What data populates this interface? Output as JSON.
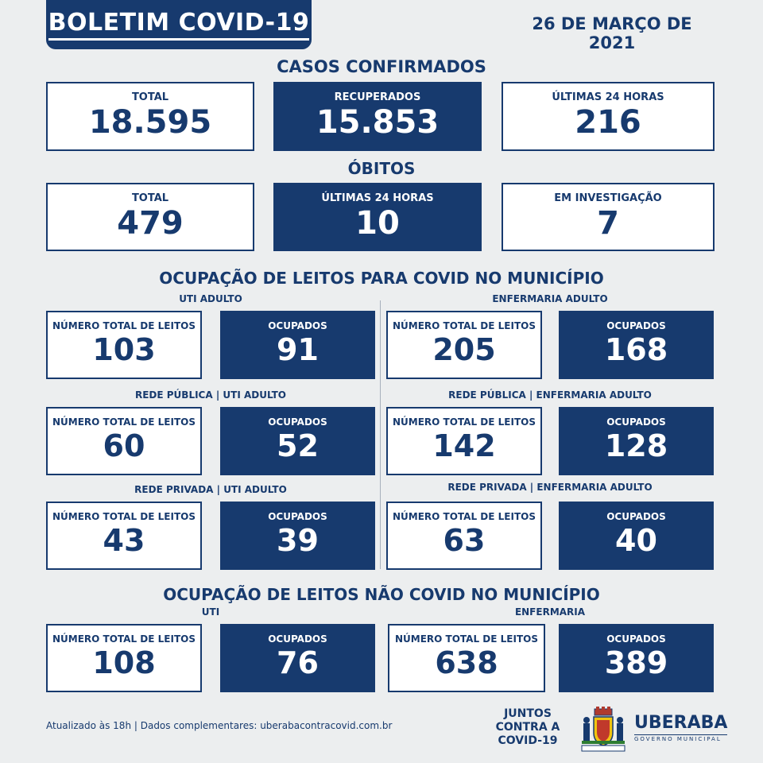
{
  "header": {
    "title": "BOLETIM COVID-19",
    "date": "26 DE MARÇO DE 2021"
  },
  "casos": {
    "title": "CASOS CONFIRMADOS",
    "total": {
      "label": "TOTAL",
      "value": "18.595"
    },
    "recuperados": {
      "label": "RECUPERADOS",
      "value": "15.853"
    },
    "ultimas24": {
      "label": "ÚLTIMAS 24 HORAS",
      "value": "216"
    }
  },
  "obitos": {
    "title": "ÓBITOS",
    "total": {
      "label": "TOTAL",
      "value": "479"
    },
    "ultimas24": {
      "label": "ÚLTIMAS 24 HORAS",
      "value": "10"
    },
    "investigacao": {
      "label": "EM INVESTIGAÇÃO",
      "value": "7"
    }
  },
  "covid": {
    "title": "OCUPAÇÃO DE LEITOS PARA COVID NO MUNICÍPIO",
    "uti_adulto": {
      "label": "UTI ADULTO",
      "total_label": "NÚMERO TOTAL DE LEITOS",
      "total": "103",
      "ocupados_label": "OCUPADOS",
      "ocupados": "91"
    },
    "enfermaria_adulto": {
      "label": "ENFERMARIA ADULTO",
      "total_label": "NÚMERO TOTAL DE LEITOS",
      "total": "205",
      "ocupados_label": "OCUPADOS",
      "ocupados": "168"
    },
    "publica_uti": {
      "label": "REDE PÚBLICA | UTI ADULTO",
      "total_label": "NÚMERO TOTAL DE LEITOS",
      "total": "60",
      "ocupados_label": "OCUPADOS",
      "ocupados": "52"
    },
    "publica_enfermaria": {
      "label": "REDE PÚBLICA | ENFERMARIA ADULTO",
      "total_label": "NÚMERO TOTAL DE LEITOS",
      "total": "142",
      "ocupados_label": "OCUPADOS",
      "ocupados": "128"
    },
    "privada_uti": {
      "label": "REDE PRIVADA | UTI ADULTO",
      "total_label": "NÚMERO TOTAL DE LEITOS",
      "total": "43",
      "ocupados_label": "OCUPADOS",
      "ocupados": "39"
    },
    "privada_enfermaria": {
      "label": "REDE PRIVADA | ENFERMARIA ADULTO",
      "total_label": "NÚMERO TOTAL DE LEITOS",
      "total": "63",
      "ocupados_label": "OCUPADOS",
      "ocupados": "40"
    }
  },
  "nao_covid": {
    "title": "OCUPAÇÃO DE LEITOS NÃO COVID NO MUNICÍPIO",
    "uti": {
      "label": "UTI",
      "total_label": "NÚMERO TOTAL DE LEITOS",
      "total": "108",
      "ocupados_label": "OCUPADOS",
      "ocupados": "76"
    },
    "enfermaria": {
      "label": "ENFERMARIA",
      "total_label": "NÚMERO TOTAL DE LEITOS",
      "total": "638",
      "ocupados_label": "OCUPADOS",
      "ocupados": "389"
    }
  },
  "footer": {
    "text": "Atualizado às 18h | Dados complementares: uberabacontracovid.com.br",
    "juntos_line1": "JUNTOS",
    "juntos_line2": "CONTRA A",
    "juntos_line3": "COVID-19",
    "city_name": "UBERABA",
    "city_sub": "GOVERNO MUNICIPAL",
    "crest_icon": "city-coat-of-arms-icon"
  },
  "colors": {
    "navy": "#173a6e",
    "background": "#eceeef",
    "white": "#ffffff"
  }
}
